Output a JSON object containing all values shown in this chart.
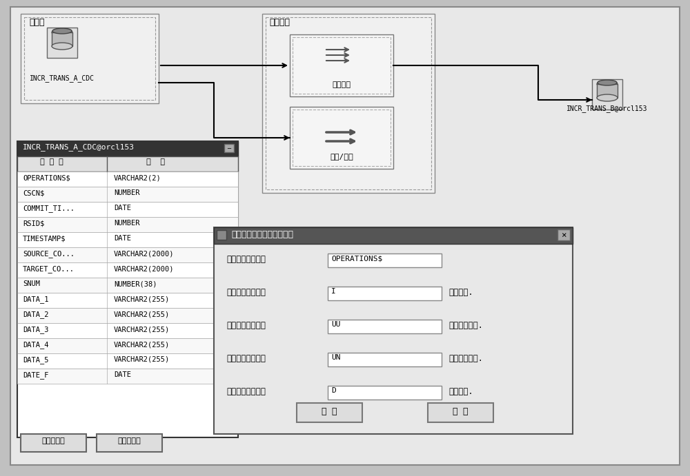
{
  "bg_color": "#d8d8d8",
  "fig_bg": "#c8c8c8",
  "title": "",
  "datasource_label": "数据源",
  "dataprocess_label": "数据加工",
  "source_node_label": "INCR_TRANS_A_CDC",
  "target_node_label": "INCR_TRANS_B@orcl153",
  "select_field_label": "选择字段",
  "transform_label": "转换/逻辑",
  "table_title": "INCR_TRANS_A_CDC@orcl153",
  "table_header": [
    "字 段 名",
    "类  型"
  ],
  "table_rows": [
    [
      "OPERATIONS$",
      "VARCHAR2(2)"
    ],
    [
      "CSCN$",
      "NUMBER"
    ],
    [
      "COMMIT_TI...",
      "DATE"
    ],
    [
      "RSID$",
      "NUMBER"
    ],
    [
      "TIMESTAMP$",
      "DATE"
    ],
    [
      "SOURCE_CO...",
      "VARCHAR2(2000)"
    ],
    [
      "TARGET_CO...",
      "VARCHAR2(2000)"
    ],
    [
      "SNUM",
      "NUMBER(38)"
    ],
    [
      "DATA_1",
      "VARCHAR2(255)"
    ],
    [
      "DATA_2",
      "VARCHAR2(255)"
    ],
    [
      "DATA_3",
      "VARCHAR2(255)"
    ],
    [
      "DATA_4",
      "VARCHAR2(255)"
    ],
    [
      "DATA_5",
      "VARCHAR2(255)"
    ],
    [
      "DATE_F",
      "DATE"
    ]
  ],
  "btn1": "变化监控器",
  "btn2": "动态表定义",
  "dialog_title": "增量监控器标志位信息配置",
  "dialog_fields": [
    {
      "label": "标志位字段名称：",
      "value": "OPERATIONS$",
      "suffix": ""
    },
    {
      "label": "如果该标志位是：",
      "value": "I",
      "suffix": "表示插入."
    },
    {
      "label": "如果该标志位是：",
      "value": "UU",
      "suffix": "表示修改旧值."
    },
    {
      "label": "如果该标志位是：",
      "value": "UN",
      "suffix": "表示修改新值."
    },
    {
      "label": "如果该标志位是：",
      "value": "D",
      "suffix": "表示删除."
    }
  ],
  "dialog_btn1": "保 存",
  "dialog_btn2": "退 出"
}
